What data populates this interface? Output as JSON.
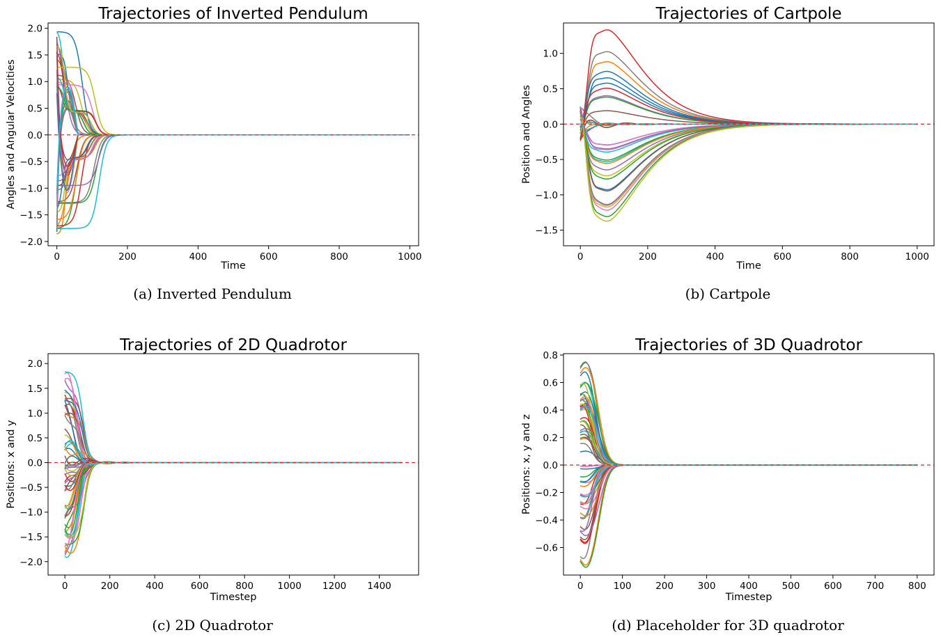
{
  "chart_data": [
    {
      "type": "line",
      "id": "pendulum",
      "title": "Trajectories of Inverted Pendulum",
      "xlabel": "Time",
      "ylabel": "Angles and Angular Velocities",
      "caption": "(a) Inverted Pendulum",
      "xlim": [
        -25,
        1025
      ],
      "ylim": [
        -2.08,
        2.1
      ],
      "xticks": [
        0,
        200,
        400,
        600,
        800,
        1000
      ],
      "xtick_labels": [
        "0",
        "200",
        "400",
        "600",
        "800",
        "1000"
      ],
      "yticks": [
        -2.0,
        -1.5,
        -1.0,
        -0.5,
        0.0,
        0.5,
        1.0,
        1.5,
        2.0
      ],
      "ytick_labels": [
        "−2.0",
        "−1.5",
        "−1.0",
        "−0.5",
        "0.0",
        "0.5",
        "1.0",
        "1.5",
        "2.0"
      ],
      "reference_line": {
        "y": 0.0,
        "style": "dashed",
        "color": "#d62728"
      },
      "trajectory_shape": "pendulum",
      "x_end": 1000,
      "series_count": 50
    },
    {
      "type": "line",
      "id": "cartpole",
      "title": "Trajectories of Cartpole",
      "xlabel": "Time",
      "ylabel": "Position and Angles",
      "caption": "(b) Cartpole",
      "xlim": [
        -50,
        1050
      ],
      "ylim": [
        -1.72,
        1.43
      ],
      "xticks": [
        0,
        200,
        400,
        600,
        800,
        1000
      ],
      "xtick_labels": [
        "0",
        "200",
        "400",
        "600",
        "800",
        "1000"
      ],
      "yticks": [
        -1.5,
        -1.0,
        -0.5,
        0.0,
        0.5,
        1.0
      ],
      "ytick_labels": [
        "−1.5",
        "−1.0",
        "−0.5",
        "0.0",
        "0.5",
        "1.0"
      ],
      "reference_line": {
        "y": 0.0,
        "style": "dashed",
        "color": "#d62728"
      },
      "trajectory_shape": "cartpole",
      "x_end": 1000,
      "series_count": 40
    },
    {
      "type": "line",
      "id": "quad2d",
      "title": "Trajectories of 2D Quadrotor",
      "xlabel": "Timestep",
      "ylabel": "Positions: x and y",
      "caption": "(c) 2D Quadrotor",
      "xlim": [
        -75,
        1575
      ],
      "ylim": [
        -2.27,
        2.2
      ],
      "xticks": [
        0,
        200,
        400,
        600,
        800,
        1000,
        1200,
        1400
      ],
      "xtick_labels": [
        "0",
        "200",
        "400",
        "600",
        "800",
        "1000",
        "1200",
        "1400"
      ],
      "yticks": [
        -2.0,
        -1.5,
        -1.0,
        -0.5,
        0.0,
        0.5,
        1.0,
        1.5,
        2.0
      ],
      "ytick_labels": [
        "−2.0",
        "−1.5",
        "−1.0",
        "−0.5",
        "0.0",
        "0.5",
        "1.0",
        "1.5",
        "2.0"
      ],
      "reference_line": {
        "y": 0.0,
        "style": "dashed",
        "color": "#d62728"
      },
      "trajectory_shape": "quad2d",
      "x_end": 1500,
      "series_count": 60
    },
    {
      "type": "line",
      "id": "quad3d",
      "title": "Trajectories of 3D Quadrotor",
      "xlabel": "Timestep",
      "ylabel": "Positions: x, y and z",
      "caption": "(d) Placeholder for 3D quadrotor",
      "xlim": [
        -40,
        840
      ],
      "ylim": [
        -0.8,
        0.81
      ],
      "xticks": [
        0,
        100,
        200,
        300,
        400,
        500,
        600,
        700,
        800
      ],
      "xtick_labels": [
        "0",
        "100",
        "200",
        "300",
        "400",
        "500",
        "600",
        "700",
        "800"
      ],
      "yticks": [
        -0.6,
        -0.4,
        -0.2,
        0.0,
        0.2,
        0.4,
        0.6,
        0.8
      ],
      "ytick_labels": [
        "−0.6",
        "−0.4",
        "−0.2",
        "0.0",
        "0.2",
        "0.4",
        "0.6",
        "0.8"
      ],
      "reference_line": {
        "y": 0.0,
        "style": "dashed",
        "color": "#d62728"
      },
      "trajectory_shape": "quad3d",
      "x_end": 800,
      "series_count": 60
    }
  ],
  "palette": [
    "#1f77b4",
    "#ff7f0e",
    "#2ca02c",
    "#d62728",
    "#9467bd",
    "#8c564b",
    "#e377c2",
    "#7f7f7f",
    "#bcbd22",
    "#17becf"
  ]
}
